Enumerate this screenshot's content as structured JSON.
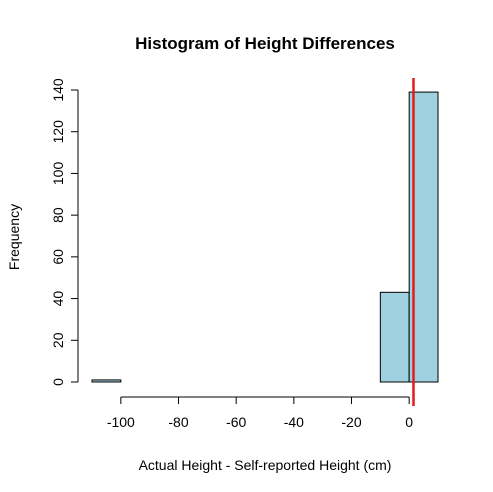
{
  "chart_data": {
    "type": "bar",
    "title": "Histogram of Height Differences",
    "xlabel": "Actual Height - Self-reported Height (cm)",
    "ylabel": "Frequency",
    "bins": [
      {
        "start": -110,
        "end": -100,
        "count": 1
      },
      {
        "start": -100,
        "end": -90,
        "count": 0
      },
      {
        "start": -90,
        "end": -80,
        "count": 0
      },
      {
        "start": -80,
        "end": -70,
        "count": 0
      },
      {
        "start": -70,
        "end": -60,
        "count": 0
      },
      {
        "start": -60,
        "end": -50,
        "count": 0
      },
      {
        "start": -50,
        "end": -40,
        "count": 0
      },
      {
        "start": -40,
        "end": -30,
        "count": 0
      },
      {
        "start": -30,
        "end": -20,
        "count": 0
      },
      {
        "start": -20,
        "end": -10,
        "count": 0
      },
      {
        "start": -10,
        "end": 0,
        "count": 43
      },
      {
        "start": 0,
        "end": 10,
        "count": 139
      }
    ],
    "xticks": [
      -100,
      -80,
      -60,
      -40,
      -20,
      0
    ],
    "yticks": [
      0,
      20,
      40,
      60,
      80,
      100,
      120,
      140
    ],
    "xlim": [
      -110,
      10
    ],
    "ylim": [
      0,
      140
    ],
    "vline": {
      "x": 1.5,
      "color": "#e41a1c"
    },
    "bar_color": "#9fd1e1",
    "bar_edge_color": "#000000"
  }
}
